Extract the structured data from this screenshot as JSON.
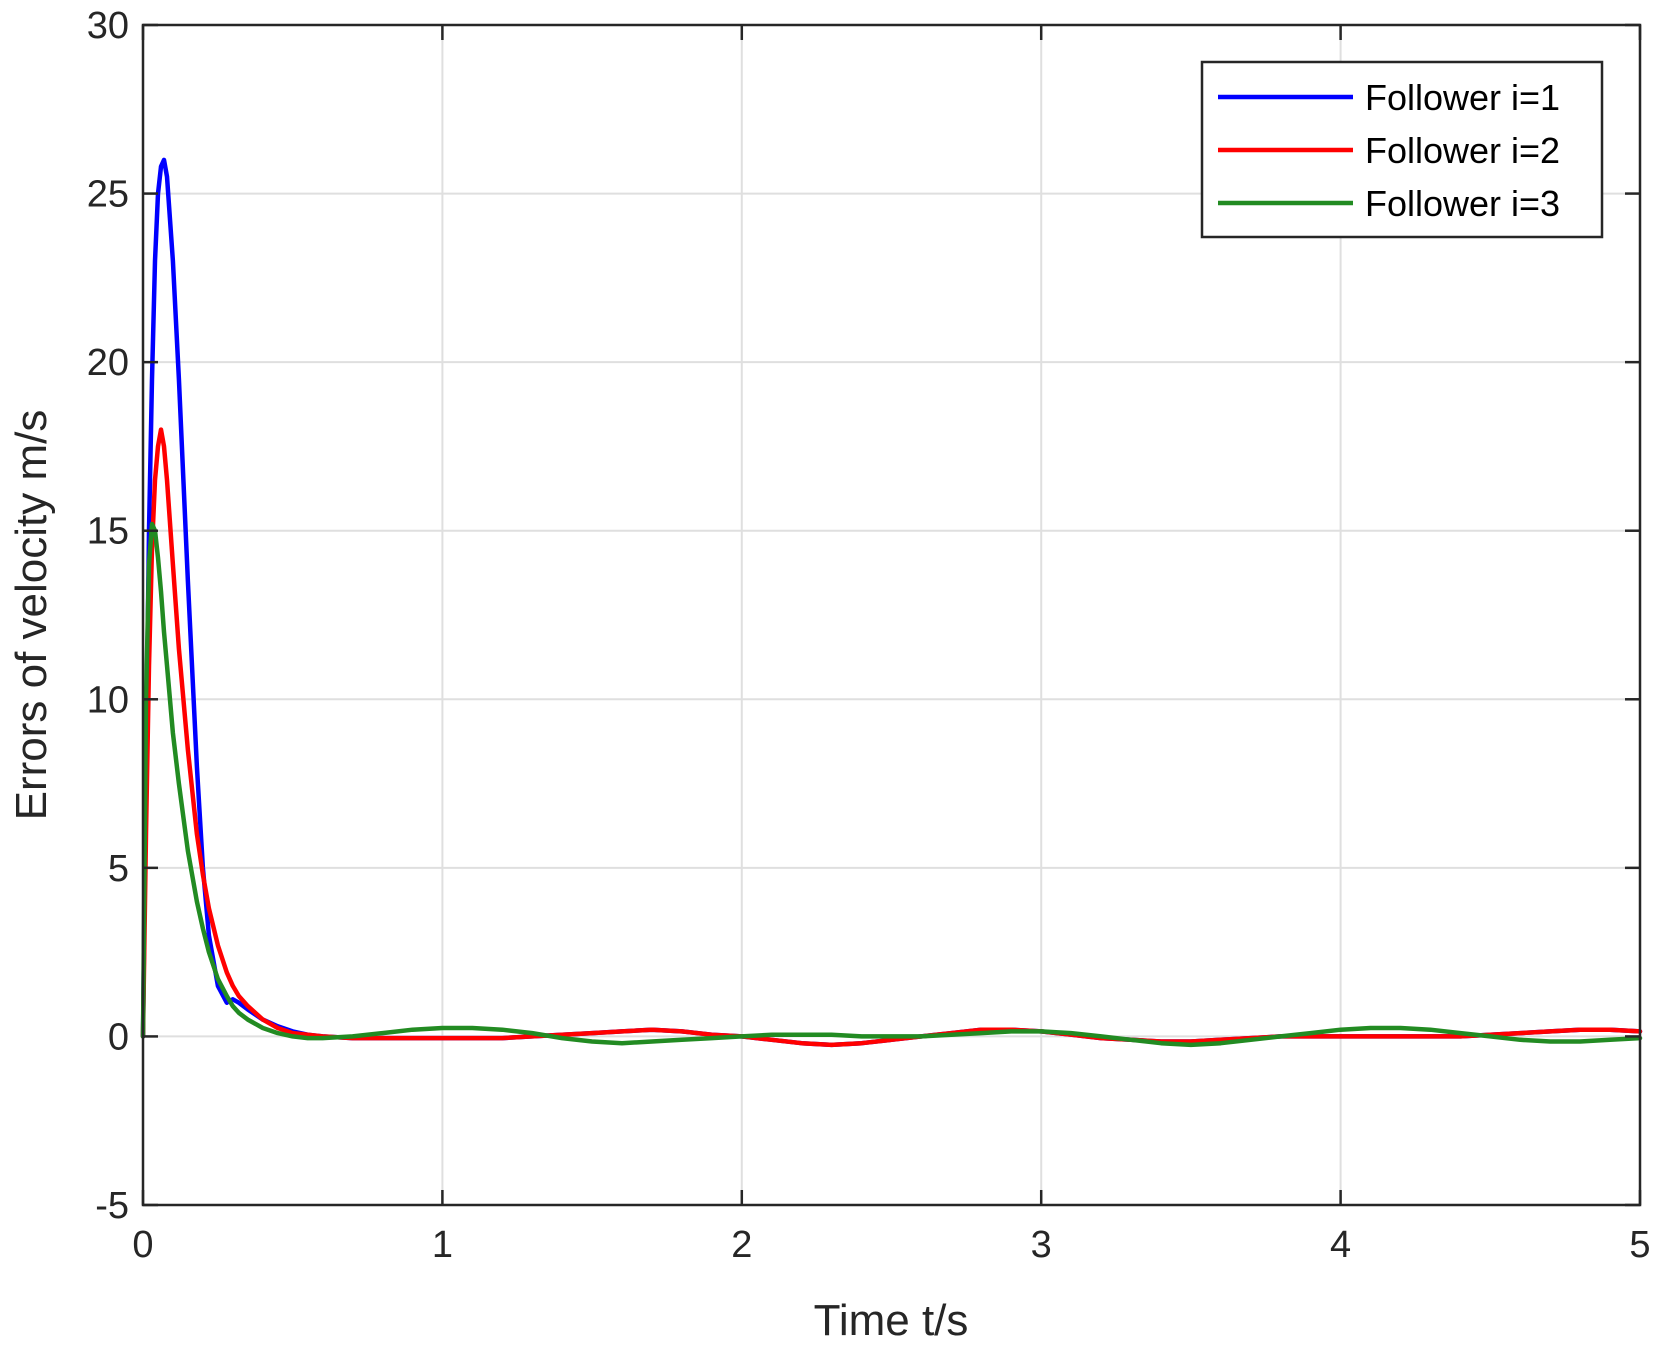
{
  "chart_data": {
    "type": "line",
    "title": "",
    "xlabel": "Time t/s",
    "ylabel": "Errors of velocity m/s",
    "xlim": [
      0,
      5
    ],
    "ylim": [
      -5,
      30
    ],
    "xticks": [
      "0",
      "1",
      "2",
      "3",
      "4",
      "5"
    ],
    "yticks": [
      "-5",
      "0",
      "5",
      "10",
      "15",
      "20",
      "25",
      "30"
    ],
    "grid": true,
    "legend_position": "top-right",
    "x": [
      0,
      0.01,
      0.02,
      0.03,
      0.04,
      0.05,
      0.06,
      0.07,
      0.08,
      0.1,
      0.12,
      0.15,
      0.18,
      0.2,
      0.22,
      0.25,
      0.28,
      0.3,
      0.32,
      0.35,
      0.4,
      0.45,
      0.5,
      0.55,
      0.6,
      0.7,
      0.8,
      0.9,
      1.0,
      1.1,
      1.2,
      1.3,
      1.4,
      1.5,
      1.6,
      1.7,
      1.8,
      1.9,
      2.0,
      2.1,
      2.2,
      2.3,
      2.4,
      2.5,
      2.6,
      2.7,
      2.8,
      2.9,
      3.0,
      3.1,
      3.2,
      3.3,
      3.4,
      3.5,
      3.6,
      3.7,
      3.8,
      3.9,
      4.0,
      4.1,
      4.2,
      4.3,
      4.4,
      4.5,
      4.6,
      4.7,
      4.8,
      4.9,
      5.0
    ],
    "series": [
      {
        "name": "Follower i=1",
        "color": "#0000ff",
        "values": [
          0,
          8,
          15,
          19.5,
          23,
          25,
          25.8,
          26,
          25.5,
          23,
          19.5,
          13.5,
          8,
          5,
          3,
          1.5,
          1.0,
          1.1,
          1.0,
          0.8,
          0.5,
          0.3,
          0.15,
          0.05,
          0.0,
          -0.05,
          -0.05,
          -0.05,
          -0.05,
          -0.05,
          -0.05,
          0.0,
          0.05,
          0.1,
          0.15,
          0.2,
          0.15,
          0.05,
          0.0,
          -0.1,
          -0.2,
          -0.25,
          -0.2,
          -0.1,
          0.0,
          0.1,
          0.2,
          0.2,
          0.15,
          0.05,
          -0.05,
          -0.1,
          -0.15,
          -0.15,
          -0.1,
          -0.05,
          0.0,
          0.0,
          0.0,
          0.0,
          0.0,
          0.0,
          0.0,
          0.05,
          0.1,
          0.15,
          0.2,
          0.2,
          0.15
        ]
      },
      {
        "name": "Follower i=2",
        "color": "#ff0000",
        "values": [
          0,
          6,
          11,
          14.5,
          16.5,
          17.5,
          18,
          17.5,
          16.5,
          14,
          11.5,
          8.5,
          6,
          4.8,
          3.8,
          2.7,
          1.9,
          1.5,
          1.2,
          0.9,
          0.5,
          0.25,
          0.1,
          0.05,
          0.0,
          -0.05,
          -0.05,
          -0.05,
          -0.05,
          -0.05,
          -0.05,
          0.0,
          0.05,
          0.1,
          0.15,
          0.2,
          0.15,
          0.05,
          0.0,
          -0.1,
          -0.2,
          -0.25,
          -0.2,
          -0.1,
          0.0,
          0.1,
          0.2,
          0.2,
          0.15,
          0.05,
          -0.05,
          -0.1,
          -0.15,
          -0.15,
          -0.1,
          -0.05,
          0.0,
          0.0,
          0.0,
          0.0,
          0.0,
          0.0,
          0.0,
          0.05,
          0.1,
          0.15,
          0.2,
          0.2,
          0.15
        ]
      },
      {
        "name": "Follower i=3",
        "color": "#228b22",
        "values": [
          0,
          10,
          14,
          15.2,
          15.0,
          14.2,
          13.2,
          12,
          11,
          9,
          7.5,
          5.5,
          4,
          3.2,
          2.5,
          1.7,
          1.2,
          0.9,
          0.7,
          0.5,
          0.25,
          0.1,
          0.0,
          -0.05,
          -0.05,
          0.0,
          0.1,
          0.2,
          0.25,
          0.25,
          0.2,
          0.1,
          -0.05,
          -0.15,
          -0.2,
          -0.15,
          -0.1,
          -0.05,
          0.0,
          0.05,
          0.05,
          0.05,
          0.0,
          0.0,
          0.0,
          0.05,
          0.1,
          0.15,
          0.15,
          0.1,
          0.0,
          -0.1,
          -0.2,
          -0.25,
          -0.2,
          -0.1,
          0.0,
          0.1,
          0.2,
          0.25,
          0.25,
          0.2,
          0.1,
          0.0,
          -0.1,
          -0.15,
          -0.15,
          -0.1,
          -0.05
        ]
      }
    ]
  }
}
